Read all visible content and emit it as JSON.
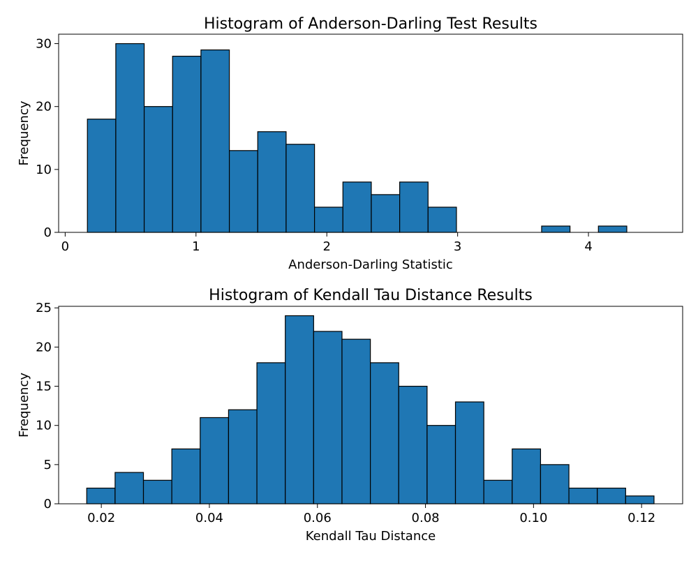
{
  "chart_data": [
    {
      "type": "bar",
      "title": "Histogram of Anderson-Darling Test Results",
      "xlabel": "Anderson-Darling Statistic",
      "ylabel": "Frequency",
      "xlim": [
        -0.05,
        4.72
      ],
      "ylim": [
        0,
        31.5
      ],
      "xticks": [
        0,
        1,
        2,
        3,
        4
      ],
      "xtick_labels": [
        "0",
        "1",
        "2",
        "3",
        "4"
      ],
      "yticks": [
        0,
        10,
        20,
        30
      ],
      "ytick_labels": [
        "0",
        "10",
        "20",
        "30"
      ],
      "bin_start": 0.17,
      "bin_width": 0.217,
      "counts": [
        18,
        30,
        20,
        28,
        29,
        13,
        16,
        14,
        4,
        8,
        6,
        8,
        4,
        0,
        0,
        0,
        1,
        0,
        1
      ],
      "bar_color": "#1f77b4",
      "edge_color": "#000000",
      "grid": false
    },
    {
      "type": "bar",
      "title": "Histogram of Kendall Tau Distance Results",
      "xlabel": "Kendall Tau Distance",
      "ylabel": "Frequency",
      "xlim": [
        0.0121,
        0.1276
      ],
      "ylim": [
        0,
        25.2
      ],
      "xticks": [
        0.02,
        0.04,
        0.06,
        0.08,
        0.1,
        0.12
      ],
      "xtick_labels": [
        "0.02",
        "0.04",
        "0.06",
        "0.08",
        "0.10",
        "0.12"
      ],
      "yticks": [
        0,
        5,
        10,
        15,
        20,
        25
      ],
      "ytick_labels": [
        "0",
        "5",
        "10",
        "15",
        "20",
        "25"
      ],
      "bin_start": 0.0173,
      "bin_width": 0.00525,
      "counts": [
        2,
        4,
        3,
        7,
        11,
        12,
        18,
        24,
        22,
        21,
        18,
        15,
        10,
        13,
        3,
        7,
        5,
        2,
        2,
        1
      ],
      "bar_color": "#1f77b4",
      "edge_color": "#000000",
      "grid": false
    }
  ]
}
